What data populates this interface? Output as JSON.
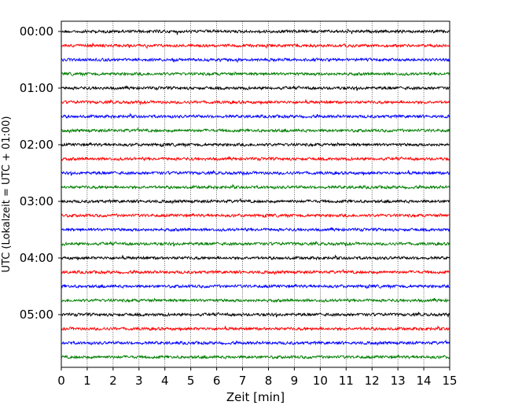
{
  "chart_data": {
    "type": "line",
    "title": "",
    "xlabel": "Zeit  [min]",
    "ylabel": "UTC (Lokalzeit = UTC + 01:00)",
    "xlim": [
      0,
      15
    ],
    "x_ticks": [
      0,
      1,
      2,
      3,
      4,
      5,
      6,
      7,
      8,
      9,
      10,
      11,
      12,
      13,
      14,
      15
    ],
    "y_tick_labels": [
      "00:00",
      "01:00",
      "02:00",
      "03:00",
      "04:00",
      "05:00"
    ],
    "trace_interval_min": 15,
    "trace_count": 24,
    "trace_color_cycle": [
      "#000000",
      "#ff0000",
      "#0000ff",
      "#007f00"
    ],
    "grid": "vertical dotted at each minute",
    "legend": "none",
    "series": [
      {
        "start": "00:00",
        "color": "#000000"
      },
      {
        "start": "00:15",
        "color": "#ff0000"
      },
      {
        "start": "00:30",
        "color": "#0000ff"
      },
      {
        "start": "00:45",
        "color": "#007f00"
      },
      {
        "start": "01:00",
        "color": "#000000"
      },
      {
        "start": "01:15",
        "color": "#ff0000"
      },
      {
        "start": "01:30",
        "color": "#0000ff"
      },
      {
        "start": "01:45",
        "color": "#007f00"
      },
      {
        "start": "02:00",
        "color": "#000000"
      },
      {
        "start": "02:15",
        "color": "#ff0000"
      },
      {
        "start": "02:30",
        "color": "#0000ff"
      },
      {
        "start": "02:45",
        "color": "#007f00"
      },
      {
        "start": "03:00",
        "color": "#000000"
      },
      {
        "start": "03:15",
        "color": "#ff0000"
      },
      {
        "start": "03:30",
        "color": "#0000ff"
      },
      {
        "start": "03:45",
        "color": "#007f00"
      },
      {
        "start": "04:00",
        "color": "#000000"
      },
      {
        "start": "04:15",
        "color": "#ff0000"
      },
      {
        "start": "04:30",
        "color": "#0000ff"
      },
      {
        "start": "04:45",
        "color": "#007f00"
      },
      {
        "start": "05:00",
        "color": "#000000"
      },
      {
        "start": "05:15",
        "color": "#ff0000"
      },
      {
        "start": "05:30",
        "color": "#0000ff"
      },
      {
        "start": "05:45",
        "color": "#007f00"
      }
    ]
  }
}
